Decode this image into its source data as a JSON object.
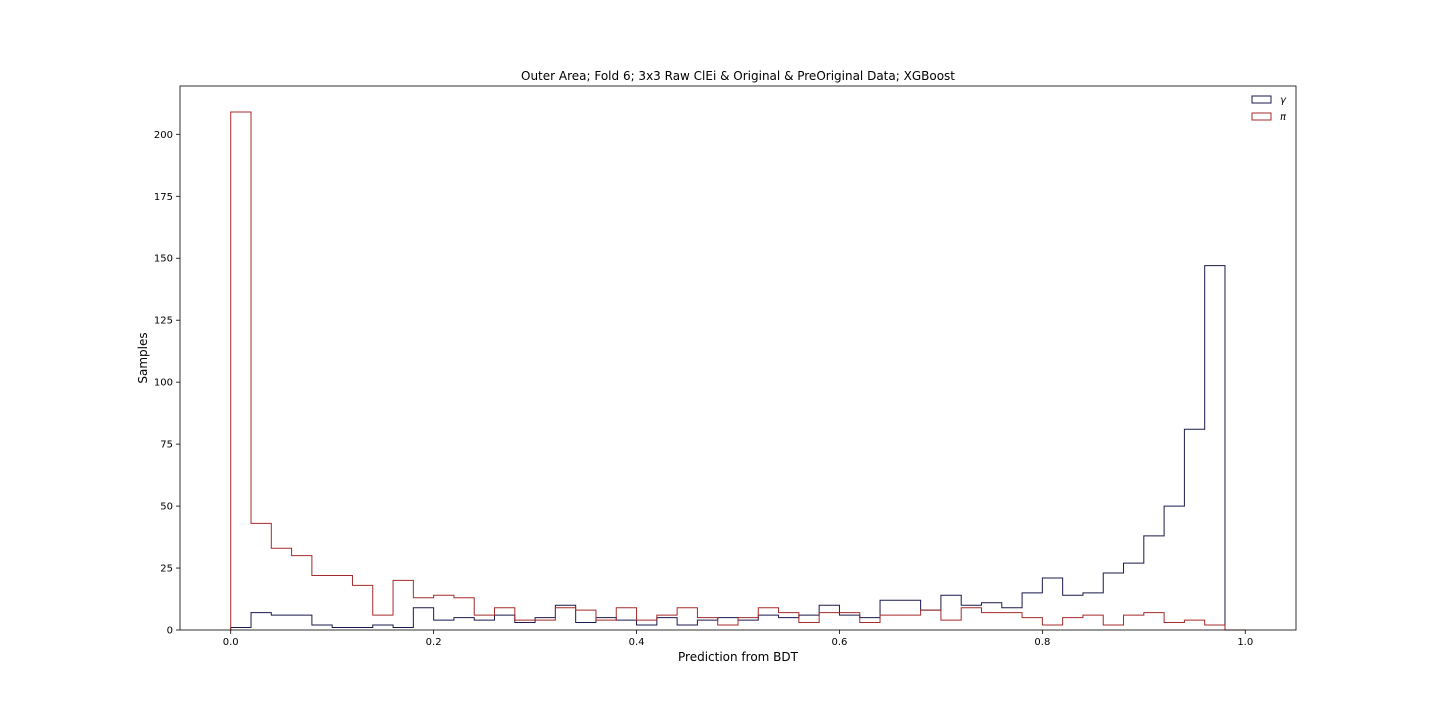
{
  "chart_data": {
    "type": "histogram",
    "title": "Outer Area; Fold 6; 3x3 Raw ClEi & Original & PreOriginal Data; XGBoost",
    "xlabel": "Prediction from BDT",
    "ylabel": "Samples",
    "xlim": [
      -0.05,
      1.05
    ],
    "ylim": [
      0,
      219.5
    ],
    "xticks": [
      0.0,
      0.2,
      0.4,
      0.6,
      0.8,
      1.0
    ],
    "xtick_labels": [
      "0.0",
      "0.2",
      "0.4",
      "0.6",
      "0.8",
      "1.0"
    ],
    "yticks": [
      0,
      25,
      50,
      75,
      100,
      125,
      150,
      175,
      200
    ],
    "ytick_labels": [
      "0",
      "25",
      "50",
      "75",
      "100",
      "125",
      "150",
      "175",
      "200"
    ],
    "grid": false,
    "legend_position": "top-right",
    "bin_edges": [
      0.0,
      0.02,
      0.04,
      0.06,
      0.08,
      0.1,
      0.12,
      0.14,
      0.16,
      0.18,
      0.2,
      0.22,
      0.24,
      0.26,
      0.28,
      0.3,
      0.32,
      0.34,
      0.36,
      0.38,
      0.4,
      0.42,
      0.44,
      0.46,
      0.48,
      0.5,
      0.52,
      0.54,
      0.56,
      0.58,
      0.6,
      0.62,
      0.64,
      0.66,
      0.68,
      0.7,
      0.72,
      0.74,
      0.76,
      0.78,
      0.8,
      0.82,
      0.84,
      0.86,
      0.88,
      0.9,
      0.92,
      0.94,
      0.96,
      0.98,
      1.0
    ],
    "series": [
      {
        "name": "γ",
        "color": "#1a1a4e",
        "values": [
          1,
          7,
          6,
          6,
          2,
          1,
          1,
          2,
          1,
          9,
          4,
          5,
          4,
          6,
          3,
          5,
          10,
          3,
          5,
          4,
          2,
          5,
          2,
          4,
          5,
          4,
          6,
          5,
          6,
          10,
          6,
          5,
          12,
          12,
          8,
          14,
          10,
          11,
          9,
          15,
          21,
          14,
          15,
          23,
          27,
          38,
          50,
          81,
          147,
          0
        ]
      },
      {
        "name": "π",
        "color": "#a52a2a",
        "values": [
          209,
          43,
          33,
          30,
          22,
          22,
          18,
          6,
          20,
          13,
          14,
          13,
          6,
          9,
          4,
          4,
          9,
          8,
          4,
          9,
          4,
          6,
          9,
          5,
          2,
          5,
          9,
          7,
          3,
          7,
          7,
          3,
          6,
          6,
          8,
          4,
          9,
          7,
          7,
          5,
          2,
          5,
          6,
          2,
          6,
          7,
          3,
          4,
          2,
          0
        ]
      }
    ]
  }
}
